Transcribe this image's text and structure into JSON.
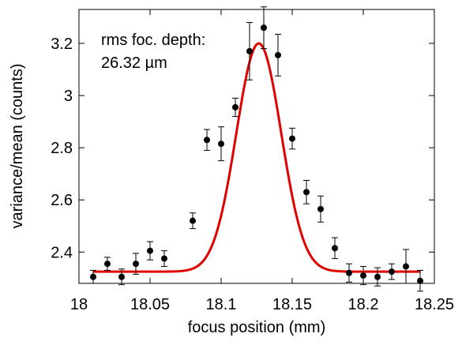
{
  "chart_data": {
    "type": "scatter",
    "xlabel": "focus position (mm)",
    "ylabel": "variance/mean (counts)",
    "xlim": [
      18.0,
      18.25
    ],
    "ylim": [
      2.28,
      3.33
    ],
    "x_ticks": [
      "18",
      "18.05",
      "18.1",
      "18.15",
      "18.2",
      "18.25"
    ],
    "x_tick_values": [
      18.0,
      18.05,
      18.1,
      18.15,
      18.2,
      18.25
    ],
    "y_ticks": [
      "2.4",
      "2.6",
      "2.8",
      "3",
      "3.2"
    ],
    "y_tick_values": [
      2.4,
      2.6,
      2.8,
      3.0,
      3.2
    ],
    "annotation": [
      "rms foc. depth:",
      "26.32 µm"
    ],
    "grid": false,
    "colors": {
      "points": "#000000",
      "fit": "#e00000"
    },
    "series": [
      {
        "type": "scatter",
        "x": [
          18.01,
          18.02,
          18.03,
          18.04,
          18.05,
          18.06,
          18.08,
          18.09,
          18.1,
          18.11,
          18.12,
          18.13,
          18.14,
          18.15,
          18.16,
          18.17,
          18.18,
          18.19,
          18.2,
          18.21,
          18.22,
          18.23,
          18.24
        ],
        "y": [
          2.305,
          2.355,
          2.305,
          2.355,
          2.405,
          2.375,
          2.52,
          2.83,
          2.815,
          2.955,
          3.17,
          3.26,
          3.155,
          2.835,
          2.63,
          2.565,
          2.415,
          2.32,
          2.31,
          2.305,
          2.325,
          2.345,
          2.29
        ],
        "y_err": [
          0.025,
          0.025,
          0.03,
          0.04,
          0.035,
          0.03,
          0.03,
          0.04,
          0.065,
          0.035,
          0.11,
          0.08,
          0.08,
          0.04,
          0.045,
          0.05,
          0.04,
          0.035,
          0.035,
          0.035,
          0.03,
          0.065,
          0.04
        ]
      },
      {
        "type": "line",
        "function": "gaussian",
        "baseline": 2.325,
        "amplitude": 0.875,
        "center": 18.1265,
        "sigma": 0.0158,
        "x_range": [
          18.01,
          18.24
        ]
      }
    ]
  }
}
